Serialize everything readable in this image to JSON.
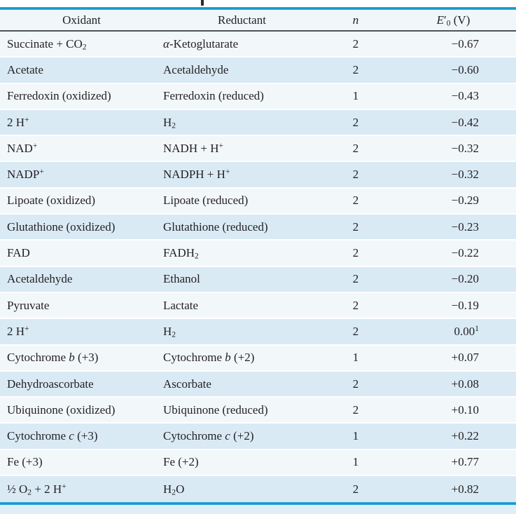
{
  "table": {
    "columns": {
      "oxidant_label": "Oxidant",
      "reductant_label": "Reductant",
      "n_label": "<i>n</i>",
      "e0_label": "<i>E</i>&#8242;<sub>0</sub> (V)"
    },
    "rows": [
      {
        "oxidant": "Succinate + CO<sub>2</sub>",
        "reductant": "<i>&#945;</i>-Ketoglutarate",
        "n": "2",
        "e0": "&#8722;0.67"
      },
      {
        "oxidant": "Acetate",
        "reductant": "Acetaldehyde",
        "n": "2",
        "e0": "&#8722;0.60"
      },
      {
        "oxidant": "Ferredoxin (oxidized)",
        "reductant": "Ferredoxin (reduced)",
        "n": "1",
        "e0": "&#8722;0.43"
      },
      {
        "oxidant": "2 H<sup>+</sup>",
        "reductant": "H<sub>2</sub>",
        "n": "2",
        "e0": "&#8722;0.42"
      },
      {
        "oxidant": "NAD<sup>+</sup>",
        "reductant": "NADH + H<sup>+</sup>",
        "n": "2",
        "e0": "&#8722;0.32"
      },
      {
        "oxidant": "NADP<sup>+</sup>",
        "reductant": "NADPH + H<sup>+</sup>",
        "n": "2",
        "e0": "&#8722;0.32"
      },
      {
        "oxidant": "Lipoate (oxidized)",
        "reductant": "Lipoate (reduced)",
        "n": "2",
        "e0": "&#8722;0.29"
      },
      {
        "oxidant": "Glutathione (oxidized)",
        "reductant": "Glutathione (reduced)",
        "n": "2",
        "e0": "&#8722;0.23"
      },
      {
        "oxidant": "FAD",
        "reductant": "FADH<sub>2</sub>",
        "n": "2",
        "e0": "&#8722;0.22"
      },
      {
        "oxidant": "Acetaldehyde",
        "reductant": "Ethanol",
        "n": "2",
        "e0": "&#8722;0.20"
      },
      {
        "oxidant": "Pyruvate",
        "reductant": "Lactate",
        "n": "2",
        "e0": "&#8722;0.19"
      },
      {
        "oxidant": "2 H<sup>+</sup>",
        "reductant": "H<sub>2</sub>",
        "n": "2",
        "e0": "0.00<sup>1</sup>"
      },
      {
        "oxidant": "Cytochrome <i>b</i> (+3)",
        "reductant": "Cytochrome <i>b</i> (+2)",
        "n": "1",
        "e0": "+0.07"
      },
      {
        "oxidant": "Dehydroascorbate",
        "reductant": "Ascorbate",
        "n": "2",
        "e0": "+0.08"
      },
      {
        "oxidant": "Ubiquinone (oxidized)",
        "reductant": "Ubiquinone (reduced)",
        "n": "2",
        "e0": "+0.10"
      },
      {
        "oxidant": "Cytochrome <i>c</i> (+3)",
        "reductant": "Cytochrome <i>c</i> (+2)",
        "n": "1",
        "e0": "+0.22"
      },
      {
        "oxidant": "Fe (+3)",
        "reductant": "Fe (+2)",
        "n": "1",
        "e0": "+0.77"
      },
      {
        "oxidant": "&#189; O<sub>2</sub> + 2 H<sup>+</sup>",
        "reductant": "H<sub>2</sub>O",
        "n": "2",
        "e0": "+0.82"
      }
    ],
    "colors": {
      "accent_line": "#1697cd",
      "row_light": "#f2f7fa",
      "row_blue": "#d9eaf5",
      "header_bg": "#f0f6f9",
      "header_rule": "#4f5254",
      "footer_strip": "#e0eef7",
      "text": "#231f20"
    }
  }
}
